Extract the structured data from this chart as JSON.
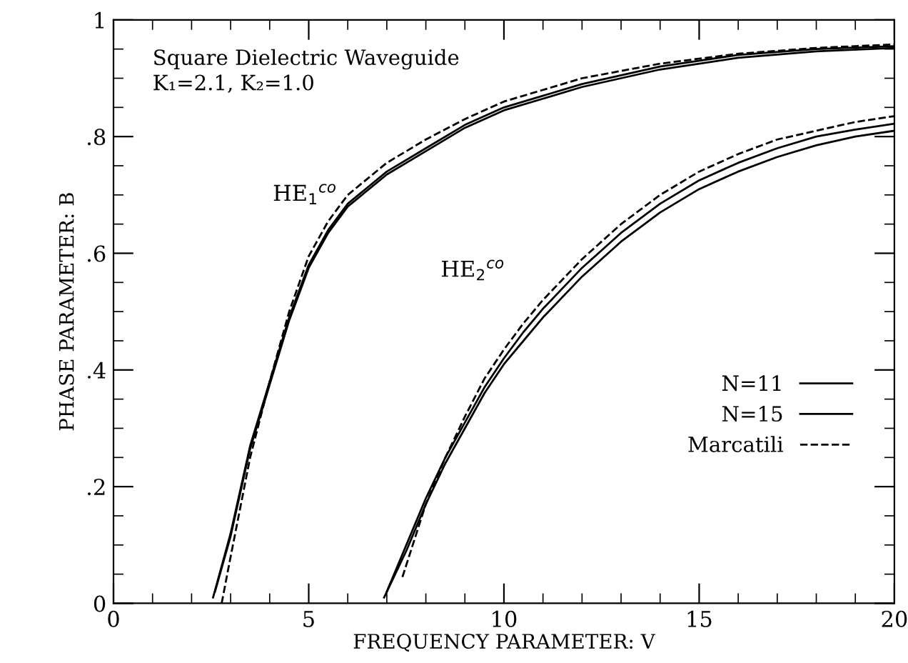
{
  "chart_data": {
    "type": "line",
    "xlabel": "FREQUENCY PARAMETER: V",
    "ylabel": "PHASE PARAMETER: B",
    "xlim": [
      0,
      20
    ],
    "ylim": [
      0,
      1
    ],
    "xticks": [
      0,
      5,
      10,
      15,
      20
    ],
    "yticks": [
      0,
      {
        "value": 0.2,
        "label": ".2"
      },
      {
        "value": 0.4,
        "label": ".4"
      },
      {
        "value": 0.6,
        "label": ".6"
      },
      {
        "value": 0.8,
        "label": ".8"
      },
      1
    ],
    "grid": false,
    "legend": "bottom right",
    "marker": "none",
    "annotations": [
      "Square Dielectric Waveguide",
      "K₁=2.1, K₂=1.0",
      "HE$_{1}$$^{co}$",
      "HE$_{2}$$^{co}$"
    ],
    "series": [
      {
        "name": "N=11",
        "color": "#000000",
        "line_style": "solid",
        "x": [
          2.55,
          3.0,
          3.5,
          4.0,
          4.5,
          5.0,
          5.5,
          6.0,
          7,
          8,
          9,
          10,
          12,
          14,
          16,
          18,
          20
        ],
        "values": [
          0.01,
          0.12,
          0.27,
          0.38,
          0.49,
          0.58,
          0.64,
          0.685,
          0.74,
          0.78,
          0.82,
          0.85,
          0.89,
          0.92,
          0.94,
          0.95,
          0.955
        ]
      },
      {
        "name": "N=15",
        "color": "#000000",
        "line_style": "solid",
        "x": [
          2.6,
          3.0,
          3.5,
          4.0,
          4.5,
          5.0,
          5.5,
          6.0,
          7,
          8,
          9,
          10,
          12,
          14,
          16,
          18,
          20
        ],
        "values": [
          0.02,
          0.115,
          0.265,
          0.375,
          0.485,
          0.575,
          0.635,
          0.68,
          0.735,
          0.775,
          0.815,
          0.845,
          0.885,
          0.915,
          0.935,
          0.946,
          0.952
        ]
      },
      {
        "name": "Marcatili",
        "color": "#000000",
        "line_style": "dashed",
        "x": [
          2.77,
          3.0,
          3.5,
          4.0,
          4.5,
          5.0,
          5.5,
          6.0,
          7,
          8,
          9,
          10,
          12,
          14,
          16,
          18,
          20
        ],
        "values": [
          0.0,
          0.08,
          0.25,
          0.38,
          0.5,
          0.595,
          0.655,
          0.7,
          0.755,
          0.795,
          0.83,
          0.86,
          0.9,
          0.925,
          0.942,
          0.952,
          0.958
        ]
      },
      {
        "color": "#000000",
        "line_style": "solid",
        "x": [
          6.93,
          7.5,
          8,
          8.5,
          9,
          9.5,
          10,
          10.5,
          11,
          12,
          13,
          14,
          15,
          16,
          17,
          18,
          19,
          20
        ],
        "values": [
          0.01,
          0.09,
          0.17,
          0.24,
          0.3,
          0.36,
          0.41,
          0.45,
          0.49,
          0.56,
          0.62,
          0.67,
          0.71,
          0.74,
          0.765,
          0.785,
          0.8,
          0.81
        ]
      },
      {
        "color": "#000000",
        "line_style": "solid",
        "x": [
          7.0,
          7.5,
          8,
          8.5,
          9,
          9.5,
          10,
          10.5,
          11,
          12,
          13,
          14,
          15,
          16,
          17,
          18,
          19,
          20
        ],
        "values": [
          0.02,
          0.1,
          0.18,
          0.25,
          0.31,
          0.37,
          0.42,
          0.465,
          0.505,
          0.575,
          0.635,
          0.685,
          0.725,
          0.755,
          0.78,
          0.8,
          0.812,
          0.822
        ]
      },
      {
        "color": "#000000",
        "line_style": "dashed",
        "x": [
          7.4,
          8,
          8.5,
          9,
          9.5,
          10,
          10.5,
          11,
          12,
          13,
          14,
          15,
          16,
          17,
          18,
          19,
          20
        ],
        "values": [
          0.045,
          0.17,
          0.25,
          0.32,
          0.385,
          0.435,
          0.48,
          0.52,
          0.59,
          0.65,
          0.7,
          0.74,
          0.77,
          0.795,
          0.81,
          0.825,
          0.835
        ]
      }
    ]
  }
}
